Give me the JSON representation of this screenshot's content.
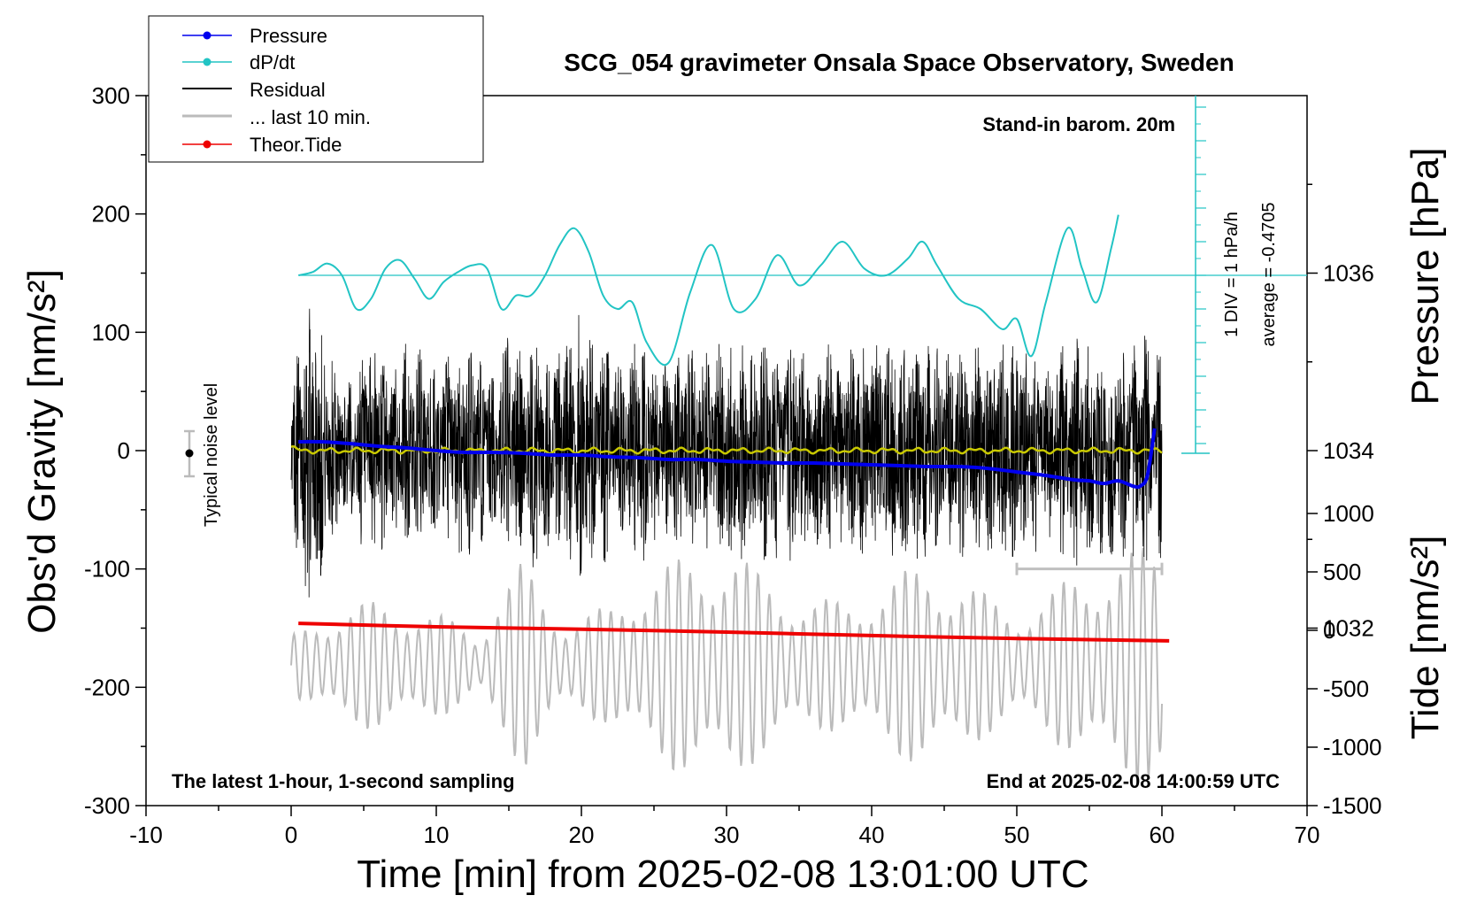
{
  "chart_data": {
    "type": "line",
    "title": "SCG_054 gravimeter Onsala Space Observatory, Sweden",
    "xlabel": "Time [min] from 2025-02-08 13:01:00 UTC",
    "ylabel_left": "Obs'd Gravity [nm/s²]",
    "ylabel_right_top": "Pressure [hPa]",
    "ylabel_right_bottom": "Tide [nm/s²]",
    "xlim": [
      -10,
      70
    ],
    "ylim": [
      -300,
      300
    ],
    "x_ticks": [
      "-10",
      "0",
      "10",
      "20",
      "30",
      "40",
      "50",
      "60",
      "70"
    ],
    "y_ticks": [
      "300",
      "200",
      "100",
      "0",
      "-100",
      "-200",
      "-300"
    ],
    "pressure_axis": {
      "range": [
        1030,
        1038
      ],
      "ticks": [
        "1036",
        "1034",
        "1032"
      ]
    },
    "tide_axis": {
      "range": [
        -1500,
        1000
      ],
      "ticks": [
        "1000",
        "500",
        "0",
        "-500",
        "-1000",
        "-1500"
      ]
    },
    "annotations": {
      "stand_in": "Stand-in barom. 20m",
      "latest": "The latest 1-hour, 1-second sampling",
      "end_at": "End at 2025-02-08 14:00:59 UTC",
      "dpdt_scale": "1 DIV = 1 hPa/h",
      "dpdt_average": "average = -0.4705",
      "noise": "Typical noise level"
    },
    "legend": [
      "Pressure",
      "dP/dt",
      "Residual",
      "... last 10 min.",
      "Theor.Tide"
    ],
    "colors": {
      "pressure": "#0000ee",
      "dpdt": "#22c4c4",
      "residual": "#000000",
      "last10": "#bbbbbb",
      "tide": "#ee0000",
      "mean": "#c8c800",
      "scale": "#c0c0c0"
    },
    "series": [
      {
        "name": "Pressure",
        "unit": "hPa",
        "x": [
          0.5,
          2,
          4,
          6,
          8,
          10,
          12,
          14,
          16,
          18,
          20,
          22,
          24,
          26,
          28,
          30,
          32,
          34,
          36,
          38,
          40,
          42,
          44,
          46,
          48,
          50,
          52,
          54,
          55,
          56,
          57,
          58,
          58.5,
          59,
          59.5
        ],
        "y": [
          1034.1,
          1034.1,
          1034.08,
          1034.05,
          1034.03,
          1034.0,
          1033.98,
          1033.98,
          1033.97,
          1033.95,
          1033.95,
          1033.93,
          1033.92,
          1033.9,
          1033.9,
          1033.88,
          1033.87,
          1033.86,
          1033.86,
          1033.85,
          1033.84,
          1033.83,
          1033.82,
          1033.82,
          1033.8,
          1033.76,
          1033.72,
          1033.67,
          1033.66,
          1033.63,
          1033.66,
          1033.6,
          1033.6,
          1033.72,
          1034.25
        ]
      },
      {
        "name": "dP/dt",
        "unit": "hPa/h",
        "x": [
          0.5,
          1.5,
          2.5,
          3.5,
          4.5,
          5.5,
          6.5,
          7.5,
          8.5,
          9.5,
          10.5,
          11.5,
          12.5,
          13.5,
          14.5,
          15.5,
          16.5,
          17.5,
          18.5,
          19.5,
          20.5,
          21.5,
          22.5,
          23.5,
          24.5,
          26,
          27.5,
          29,
          30.5,
          32,
          33.5,
          35,
          36.5,
          38,
          39.5,
          41,
          42.5,
          43.5,
          44.5,
          46,
          47.5,
          49,
          50,
          51,
          52,
          53.5,
          54.5,
          55.5,
          56.5,
          57
        ],
        "y": [
          0.0,
          0.1,
          0.35,
          0.0,
          -1.0,
          -0.7,
          0.2,
          0.45,
          -0.1,
          -0.7,
          -0.2,
          0.1,
          0.3,
          0.2,
          -1.0,
          -0.6,
          -0.6,
          0.0,
          0.9,
          1.4,
          0.7,
          -0.6,
          -1.0,
          -0.8,
          -2.0,
          -2.6,
          -0.5,
          0.9,
          -1.0,
          -0.7,
          0.6,
          -0.3,
          0.3,
          1.0,
          0.2,
          0.0,
          0.5,
          1.0,
          0.3,
          -0.7,
          -1.0,
          -1.6,
          -1.3,
          -2.4,
          -0.8,
          1.4,
          0.2,
          -0.8,
          0.8,
          1.8
        ]
      },
      {
        "name": "Theor.Tide",
        "unit": "nm/s²",
        "x": [
          0.5,
          10,
          20,
          30,
          40,
          50,
          60.5
        ],
        "y": [
          60,
          30,
          10,
          -15,
          -45,
          -70,
          -90
        ]
      }
    ],
    "residual_envelope": {
      "x": [
        0,
        1,
        2,
        3,
        4,
        5,
        6,
        7,
        8,
        9,
        10,
        11,
        12,
        13,
        14,
        15,
        16,
        17,
        18,
        19,
        20,
        21,
        22,
        23,
        24,
        25,
        26,
        27,
        28,
        29,
        30,
        31,
        32,
        33,
        34,
        35,
        36,
        37,
        38,
        39,
        40,
        41,
        42,
        43,
        44,
        45,
        46,
        47,
        48,
        49,
        50,
        51,
        52,
        53,
        54,
        55,
        56,
        57,
        58,
        59,
        60
      ],
      "amp": [
        55,
        135,
        120,
        75,
        60,
        85,
        100,
        70,
        95,
        90,
        70,
        90,
        95,
        80,
        70,
        110,
        80,
        110,
        80,
        105,
        120,
        95,
        95,
        80,
        105,
        80,
        75,
        95,
        85,
        90,
        95,
        95,
        90,
        100,
        90,
        100,
        85,
        95,
        80,
        100,
        90,
        100,
        95,
        100,
        95,
        85,
        90,
        95,
        90,
        100,
        95,
        90,
        85,
        90,
        100,
        95,
        90,
        95,
        100,
        105,
        110
      ]
    },
    "last10_envelope": {
      "x": [
        0,
        2,
        4,
        6,
        8,
        10,
        12,
        13,
        14,
        16,
        18,
        19,
        20,
        22,
        24,
        26,
        28,
        30,
        32,
        34,
        36,
        38,
        40,
        42,
        44,
        46,
        48,
        50,
        52,
        54,
        56,
        58,
        59,
        60
      ],
      "amp": [
        250,
        450,
        520,
        560,
        540,
        450,
        350,
        280,
        600,
        900,
        560,
        420,
        430,
        520,
        800,
        900,
        950,
        1100,
        820,
        700,
        580,
        560,
        700,
        800,
        900,
        780,
        600,
        520,
        600,
        800,
        950,
        1000,
        1050,
        1100
      ]
    }
  }
}
